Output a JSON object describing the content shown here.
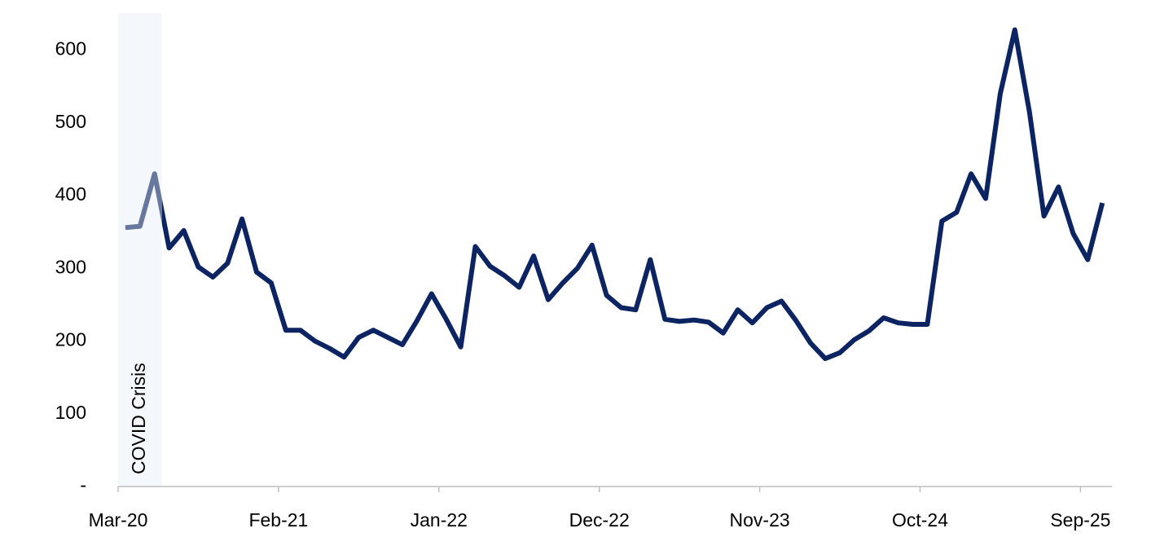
{
  "chart_data": {
    "type": "line",
    "annotation": "COVID Crisis",
    "categories": [
      "Mar-20",
      null,
      null,
      null,
      null,
      null,
      null,
      null,
      null,
      null,
      null,
      "Feb-21",
      null,
      null,
      null,
      null,
      null,
      null,
      null,
      null,
      null,
      null,
      "Jan-22",
      null,
      null,
      null,
      null,
      null,
      null,
      null,
      null,
      null,
      null,
      "Dec-22",
      null,
      null,
      null,
      null,
      null,
      null,
      null,
      null,
      null,
      null,
      "Nov-23",
      null,
      null,
      null,
      null,
      null,
      null,
      null,
      null,
      null,
      null,
      "Oct-24",
      null,
      null,
      null,
      null,
      null,
      null,
      null,
      null,
      null,
      null,
      "Sep-25",
      null
    ],
    "series": [
      {
        "color": "#0c2461",
        "values": [
          356,
          358,
          430,
          328,
          352,
          302,
          288,
          307,
          368,
          295,
          280,
          215,
          215,
          200,
          190,
          178,
          205,
          215,
          205,
          195,
          228,
          265,
          230,
          192,
          330,
          303,
          290,
          274,
          317,
          257,
          280,
          300,
          332,
          263,
          246,
          243,
          312,
          230,
          227,
          229,
          226,
          211,
          243,
          225,
          246,
          255,
          228,
          197,
          176,
          184,
          202,
          214,
          232,
          225,
          223,
          223,
          365,
          377,
          430,
          396,
          540,
          628,
          515,
          372,
          412,
          348,
          312,
          390
        ]
      }
    ],
    "ylim": [
      0,
      650
    ],
    "yticks": [
      {
        "value": 0,
        "label": "-"
      },
      100,
      200,
      300,
      400,
      500,
      600
    ],
    "grid": false
  }
}
